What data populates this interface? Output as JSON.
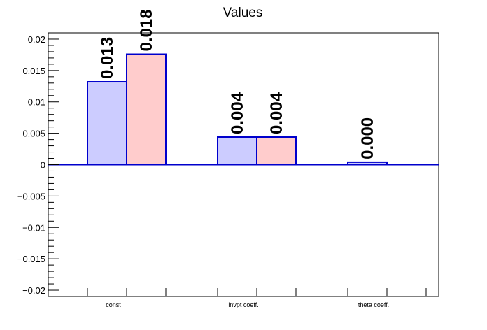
{
  "chart_data": {
    "type": "bar",
    "title": "Values",
    "xlabel": "",
    "ylabel": "",
    "categories": [
      "const",
      "invpt coeff.",
      "theta coeff."
    ],
    "series": [
      {
        "values": [
          0.0132,
          0.0044,
          0.0004
        ],
        "color": "#ccccff",
        "edge_color": "#0000cc"
      },
      {
        "values": [
          0.0176,
          0.0044,
          0.0
        ],
        "color": "#ffcccc",
        "edge_color": "#0000cc"
      }
    ],
    "data_labels": [
      [
        "0.013",
        "0.004",
        "0.000"
      ],
      [
        "0.018",
        "0.004",
        ""
      ]
    ],
    "ylim": [
      -0.021,
      0.021
    ],
    "yticks": [
      -0.02,
      -0.015,
      -0.01,
      -0.005,
      0,
      0.005,
      0.01,
      0.015,
      0.02
    ],
    "ytick_labels": [
      "−0.02",
      "−0.015",
      "−0.01",
      "−0.005",
      "0",
      "0.005",
      "0.01",
      "0.015",
      "0.02"
    ],
    "grid": false,
    "legend": "none"
  }
}
